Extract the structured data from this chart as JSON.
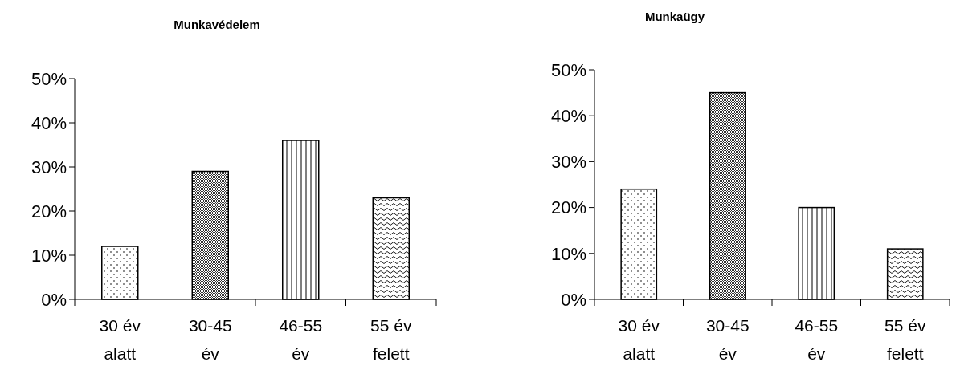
{
  "chart_data": [
    {
      "type": "bar",
      "title": "Munkavédelem",
      "categories": [
        "30 év alatt",
        "30-45 év",
        "46-55 év",
        "55 év felett"
      ],
      "values": [
        12,
        29,
        36,
        23
      ],
      "ylim": [
        0,
        50
      ],
      "yticks": [
        {
          "value": 0,
          "label": "0%"
        },
        {
          "value": 10,
          "label": "10%"
        },
        {
          "value": 20,
          "label": "20%"
        },
        {
          "value": 30,
          "label": "30%"
        },
        {
          "value": 40,
          "label": "40%"
        },
        {
          "value": 50,
          "label": "50%"
        }
      ],
      "grid": false
    },
    {
      "type": "bar",
      "title": "Munkaügy",
      "categories": [
        "30 év alatt",
        "30-45 év",
        "46-55 év",
        "55 év felett"
      ],
      "values": [
        24,
        45,
        20,
        11
      ],
      "ylim": [
        0,
        50
      ],
      "yticks": [
        {
          "value": 0,
          "label": "0%"
        },
        {
          "value": 10,
          "label": "10%"
        },
        {
          "value": 20,
          "label": "20%"
        },
        {
          "value": 30,
          "label": "30%"
        },
        {
          "value": 40,
          "label": "40%"
        },
        {
          "value": 50,
          "label": "50%"
        }
      ],
      "grid": false
    }
  ]
}
